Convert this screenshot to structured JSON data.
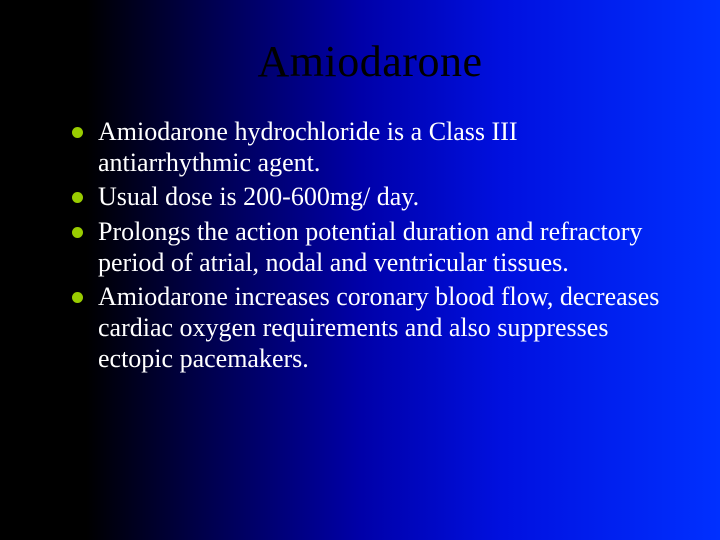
{
  "slide": {
    "title": "Amiodarone",
    "title_color": "#000000",
    "title_fontsize": 44,
    "body_color": "#ffffff",
    "body_fontsize": 26,
    "bullet_color": "#99cc00",
    "background_gradient": [
      "#000000",
      "#0030ff"
    ],
    "bullets": [
      "Amiodarone hydrochloride is a Class III antiarrhythmic agent.",
      "Usual dose is 200-600mg/ day.",
      "Prolongs the action potential duration and refractory period of atrial, nodal and ventricular tissues.",
      "Amiodarone increases coronary blood flow, decreases cardiac oxygen requirements and also suppresses ectopic pacemakers."
    ]
  }
}
